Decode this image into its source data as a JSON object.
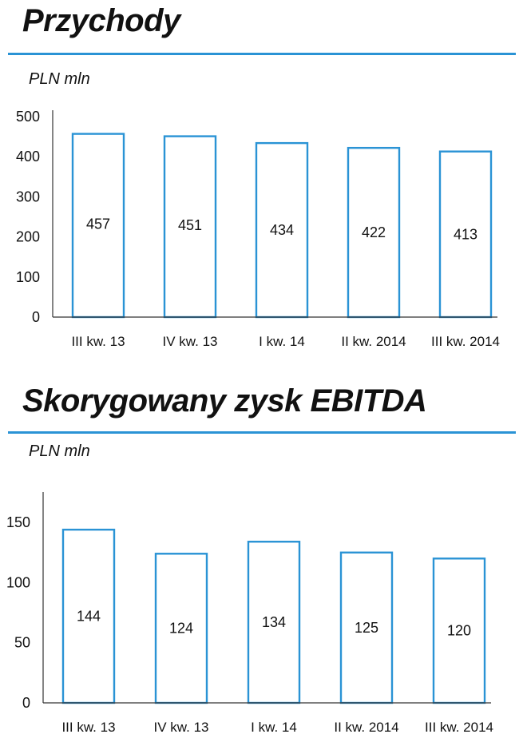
{
  "accent_color": "#2a93d5",
  "chart_data": [
    {
      "type": "bar",
      "title": "Przychody",
      "ylabel": "PLN mln",
      "categories": [
        "III kw. 13",
        "IV kw. 13",
        "I kw. 14",
        "II kw. 2014",
        "III kw. 2014"
      ],
      "values": [
        457,
        451,
        434,
        422,
        413
      ],
      "value_labels": [
        "457",
        "451",
        "434",
        "422",
        "413"
      ],
      "yticks": [
        0,
        100,
        200,
        300,
        400,
        500
      ],
      "ytick_labels": [
        "0",
        "100",
        "200",
        "300",
        "400",
        "500"
      ],
      "ylim": [
        0,
        500
      ]
    },
    {
      "type": "bar",
      "title": "Skorygowany zysk EBITDA",
      "ylabel": "PLN mln",
      "categories": [
        "III kw. 13",
        "IV kw. 13",
        "I kw. 14",
        "II kw. 2014",
        "III kw. 2014"
      ],
      "values": [
        144,
        124,
        134,
        125,
        120
      ],
      "value_labels": [
        "144",
        "124",
        "134",
        "125",
        "120"
      ],
      "yticks": [
        0,
        50,
        100,
        150
      ],
      "ytick_labels": [
        "0",
        "50",
        "100",
        "150"
      ],
      "ylim": [
        0,
        170
      ]
    }
  ]
}
